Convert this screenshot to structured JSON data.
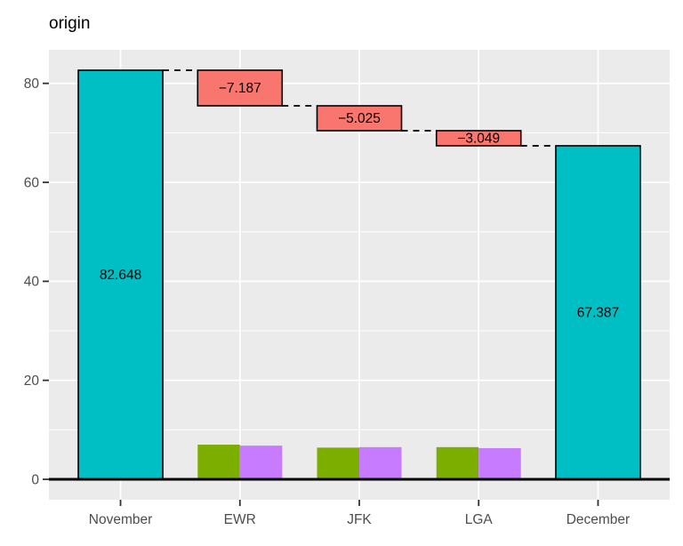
{
  "title": "origin",
  "colors": {
    "total_bar": "#00BFC4",
    "decrease_bar": "#F8766D",
    "side_bar_green": "#7CAE00",
    "side_bar_purple": "#C77CFF",
    "panel_bg": "#EBEBEB",
    "grid": "#FFFFFF",
    "axis_text": "#4D4D4D",
    "tick_mark": "#333333",
    "bar_border": "#000000",
    "zero_line": "#000000",
    "label_text": "#000000"
  },
  "chart_data": {
    "type": "bar",
    "subtype": "waterfall",
    "title": "origin",
    "categories": [
      "November",
      "EWR",
      "JFK",
      "LGA",
      "December"
    ],
    "waterfall": [
      {
        "category": "November",
        "start": 0,
        "end": 82.648,
        "label": "82.648",
        "role": "total"
      },
      {
        "category": "EWR",
        "start": 82.648,
        "end": 75.461,
        "label": "−7.187",
        "role": "decrease"
      },
      {
        "category": "JFK",
        "start": 75.461,
        "end": 70.436,
        "label": "−5.025",
        "role": "decrease"
      },
      {
        "category": "LGA",
        "start": 70.436,
        "end": 67.387,
        "label": "−3.049",
        "role": "decrease"
      },
      {
        "category": "December",
        "start": 0,
        "end": 67.387,
        "label": "67.387",
        "role": "total"
      }
    ],
    "connectors": [
      82.648,
      75.461,
      70.436,
      67.387
    ],
    "side_bars_values_estimated": [
      {
        "category": "EWR",
        "green": 7.0,
        "purple": 6.8
      },
      {
        "category": "JFK",
        "green": 6.4,
        "purple": 6.5
      },
      {
        "category": "LGA",
        "green": 6.5,
        "purple": 6.3
      }
    ],
    "y_axis": {
      "ticks": [
        0,
        20,
        40,
        60,
        80
      ],
      "minor_ticks": [
        10,
        30,
        50,
        70
      ],
      "range": [
        -4.13,
        86.78
      ]
    },
    "x_axis": {
      "labels": [
        "November",
        "EWR",
        "JFK",
        "LGA",
        "December"
      ]
    },
    "grid": true,
    "legend": "none"
  }
}
